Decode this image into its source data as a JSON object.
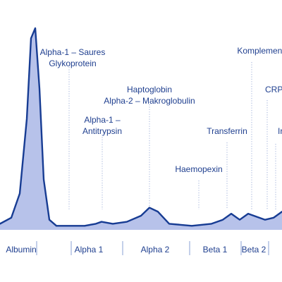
{
  "chart_data": {
    "type": "area",
    "title": "",
    "xlabel": "",
    "ylabel": "",
    "sections": [
      "Albumin",
      "Alpha 1",
      "Alpha 2",
      "Beta 1",
      "Beta 2",
      ""
    ],
    "annotations": [
      {
        "lines": [
          "Alpha-1 – Saures",
          "Glykoprotein"
        ]
      },
      {
        "lines": [
          "Alpha-1 –",
          "Antitrypsin"
        ]
      },
      {
        "lines": [
          "Haptoglobin",
          "Alpha-2 – Makroglobulin"
        ]
      },
      {
        "lines": [
          "Haemopexin"
        ]
      },
      {
        "lines": [
          "Transferrin"
        ]
      },
      {
        "lines": [
          "Komplement"
        ]
      },
      {
        "lines": [
          "CRP"
        ]
      },
      {
        "lines": [
          "Ir"
        ]
      }
    ],
    "series": [
      {
        "values": [
          [
            0,
            0.03
          ],
          [
            0.04,
            0.06
          ],
          [
            0.07,
            0.18
          ],
          [
            0.095,
            0.55
          ],
          [
            0.11,
            0.95
          ],
          [
            0.125,
            1.0
          ],
          [
            0.14,
            0.7
          ],
          [
            0.155,
            0.25
          ],
          [
            0.175,
            0.05
          ],
          [
            0.2,
            0.02
          ],
          [
            0.25,
            0.02
          ],
          [
            0.3,
            0.02
          ],
          [
            0.34,
            0.03
          ],
          [
            0.36,
            0.04
          ],
          [
            0.4,
            0.03
          ],
          [
            0.45,
            0.04
          ],
          [
            0.5,
            0.07
          ],
          [
            0.53,
            0.11
          ],
          [
            0.56,
            0.09
          ],
          [
            0.6,
            0.03
          ],
          [
            0.68,
            0.02
          ],
          [
            0.75,
            0.03
          ],
          [
            0.79,
            0.05
          ],
          [
            0.82,
            0.08
          ],
          [
            0.85,
            0.05
          ],
          [
            0.88,
            0.08
          ],
          [
            0.9,
            0.07
          ],
          [
            0.94,
            0.05
          ],
          [
            0.97,
            0.06
          ],
          [
            1.0,
            0.09
          ]
        ]
      }
    ]
  }
}
